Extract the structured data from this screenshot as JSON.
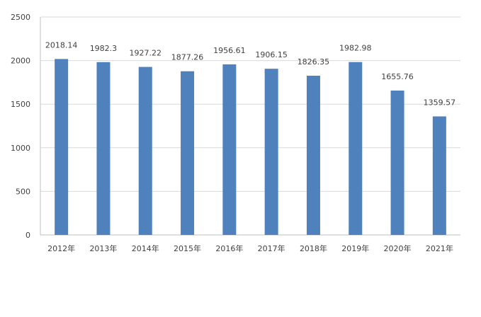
{
  "chart_data": {
    "type": "bar",
    "categories": [
      "2012年",
      "2013年",
      "2014年",
      "2015年",
      "2016年",
      "2017年",
      "2018年",
      "2019年",
      "2020年",
      "2021年"
    ],
    "values": [
      2018.14,
      1982.3,
      1927.22,
      1877.26,
      1956.61,
      1906.15,
      1826.35,
      1982.98,
      1655.76,
      1359.57
    ],
    "data_labels": [
      "2018.14",
      "1982.3",
      "1927.22",
      "1877.26",
      "1956.61",
      "1906.15",
      "1826.35",
      "1982.98",
      "1655.76",
      "1359.57"
    ],
    "y_ticks": [
      "0",
      "500",
      "1000",
      "1500",
      "2000",
      "2500"
    ],
    "ylim": [
      0,
      2500
    ],
    "title": "",
    "xlabel": "",
    "ylabel": "",
    "grid": true,
    "legend": "none",
    "bar_color": "#4F81BD",
    "grid_color": "#D9D9D9",
    "axis_color": "#BFBFBF"
  }
}
